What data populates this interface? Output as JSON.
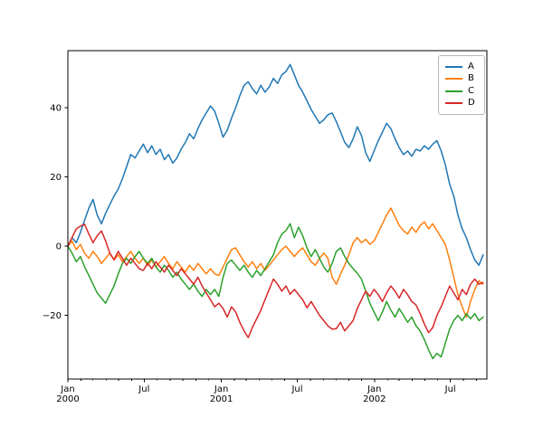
{
  "chart_data": {
    "type": "line",
    "title": "",
    "xlabel": "",
    "ylabel": "",
    "grid": false,
    "legend_position": "upper-right",
    "x_axis": {
      "unit": "days since 2000-01-01",
      "range_days": [
        0,
        999
      ],
      "major_ticks": [
        {
          "day": 0,
          "line1": "Jan",
          "line2": "2000"
        },
        {
          "day": 182,
          "line1": "Jul",
          "line2": ""
        },
        {
          "day": 366,
          "line1": "Jan",
          "line2": "2001"
        },
        {
          "day": 547,
          "line1": "Jul",
          "line2": ""
        },
        {
          "day": 731,
          "line1": "Jan",
          "line2": "2002"
        },
        {
          "day": 912,
          "line1": "Jul",
          "line2": ""
        }
      ],
      "minor_tick_days": [
        31,
        60,
        91,
        121,
        152,
        213,
        244,
        274,
        305,
        335,
        397,
        425,
        456,
        486,
        517,
        578,
        609,
        639,
        670,
        700,
        762,
        790,
        821,
        851,
        882,
        943,
        974
      ]
    },
    "y_axis": {
      "lim": [
        -38.4,
        56.5
      ],
      "ticks": [
        {
          "value": -20,
          "label": "−20"
        },
        {
          "value": 0,
          "label": "0"
        },
        {
          "value": 20,
          "label": "20"
        },
        {
          "value": 40,
          "label": "40"
        }
      ]
    },
    "step_days": 10,
    "series": [
      {
        "name": "A",
        "color": "#1f77b4",
        "values": [
          0,
          2.5,
          1,
          4,
          7.5,
          11,
          13.5,
          9,
          6.5,
          9.5,
          12,
          14.5,
          16.5,
          19.5,
          23,
          26.5,
          25.5,
          27.5,
          29.5,
          27,
          29,
          26.5,
          28,
          25,
          26.5,
          24,
          25.5,
          28,
          30,
          32.5,
          31,
          34,
          36.5,
          38.5,
          40.5,
          39,
          35.5,
          31.5,
          33.5,
          37,
          40,
          43.5,
          46.5,
          47.5,
          45.5,
          44,
          46.5,
          44.5,
          46,
          48.5,
          47,
          49.5,
          50.5,
          52.5,
          49.5,
          46.5,
          44.5,
          42,
          39.5,
          37.5,
          35.5,
          36.5,
          38,
          38.5,
          36,
          33,
          30,
          28.5,
          31,
          34.5,
          32,
          27,
          24.5,
          27.5,
          30.5,
          33,
          35.5,
          34,
          31,
          28.5,
          26.5,
          27.5,
          26,
          28,
          27.5,
          29,
          28,
          29.5,
          30.5,
          27.5,
          23.5,
          18,
          14.5,
          9,
          5,
          2.5,
          -1,
          -4,
          -5.5,
          -2.5
        ]
      },
      {
        "name": "B",
        "color": "#ff7f0e",
        "values": [
          0,
          1.5,
          -1,
          0.5,
          -2,
          -3.5,
          -1.5,
          -3,
          -5,
          -3.5,
          -2,
          -4,
          -2.5,
          -4.5,
          -3,
          -1.5,
          -3.5,
          -5,
          -3.5,
          -5.5,
          -4,
          -6,
          -4.5,
          -3,
          -5,
          -6.5,
          -4.5,
          -6,
          -7.5,
          -5.5,
          -7,
          -5,
          -6.5,
          -8,
          -6.5,
          -8,
          -8.5,
          -6,
          -3.5,
          -1,
          -0.5,
          -2.5,
          -4.5,
          -6,
          -4.5,
          -6.5,
          -5,
          -7,
          -5.5,
          -4,
          -2.5,
          -1,
          0,
          -1.5,
          -3,
          -1.5,
          -0.5,
          -2.5,
          -4.5,
          -5.5,
          -3.5,
          -2,
          -3.5,
          -9,
          -11,
          -8,
          -5.5,
          -2.5,
          1,
          2.5,
          1,
          2,
          0.5,
          1.5,
          4,
          6.5,
          9,
          11,
          8.5,
          6,
          4.5,
          3.5,
          5.5,
          4,
          6,
          7,
          5,
          6.5,
          4.5,
          2.5,
          0.5,
          -4,
          -9,
          -14,
          -17.5,
          -20.5,
          -16,
          -12.5,
          -10,
          -11
        ]
      },
      {
        "name": "C",
        "color": "#2ca02c",
        "values": [
          0,
          -2,
          -4.5,
          -3,
          -6,
          -8.5,
          -11,
          -13.5,
          -15,
          -16.5,
          -14,
          -11.5,
          -8,
          -5,
          -3.5,
          -5,
          -3,
          -1.5,
          -3.5,
          -5,
          -3.5,
          -6,
          -7.5,
          -5.5,
          -7,
          -9,
          -7.5,
          -9.5,
          -11,
          -12.5,
          -11,
          -13,
          -14.5,
          -12.5,
          -14,
          -12.5,
          -14.5,
          -9,
          -5,
          -4,
          -5.5,
          -7,
          -5.5,
          -7.5,
          -9,
          -7,
          -8.5,
          -6.5,
          -4.5,
          -2.5,
          1,
          3.5,
          4.5,
          6.5,
          2.5,
          5.5,
          3,
          -0.5,
          -3,
          -1,
          -3.5,
          -6,
          -7.5,
          -5,
          -1.5,
          -0.5,
          -3,
          -5,
          -6.5,
          -7.8,
          -9.5,
          -13,
          -16.5,
          -19,
          -21.5,
          -19,
          -16,
          -18.5,
          -20.5,
          -18,
          -20,
          -22,
          -20.5,
          -23,
          -24.5,
          -27,
          -30,
          -32.5,
          -31,
          -32,
          -28,
          -24,
          -21.5,
          -20,
          -21.5,
          -19.5,
          -21,
          -19.5,
          -21.5,
          -20.5
        ]
      },
      {
        "name": "D",
        "color": "#d62728",
        "values": [
          0,
          2.5,
          5,
          5.8,
          6.3,
          3.5,
          1,
          3,
          4.4,
          1.5,
          -2,
          -3.9,
          -1.5,
          -3.5,
          -5.5,
          -3.5,
          -5,
          -6.5,
          -7,
          -5,
          -6.5,
          -4.5,
          -6,
          -7.5,
          -5.5,
          -7,
          -8.5,
          -6.5,
          -8,
          -9.5,
          -11,
          -9,
          -11.5,
          -13.5,
          -15.5,
          -17.5,
          -16.5,
          -18,
          -20.5,
          -17.5,
          -19,
          -22,
          -24.5,
          -26.4,
          -23.5,
          -21,
          -18.5,
          -15.5,
          -12.5,
          -9.5,
          -11,
          -13,
          -11.5,
          -13.9,
          -12.5,
          -14,
          -15.5,
          -17.8,
          -16,
          -18,
          -20,
          -21.5,
          -23,
          -24,
          -23.8,
          -22,
          -24.5,
          -23,
          -21.5,
          -18,
          -15.5,
          -13,
          -14.5,
          -12.5,
          -14,
          -16,
          -13.5,
          -11.5,
          -13,
          -15,
          -12.5,
          -14,
          -16,
          -17,
          -19.5,
          -22.5,
          -25,
          -23.5,
          -20,
          -17.5,
          -14.5,
          -11.5,
          -13.5,
          -15.5,
          -12.5,
          -14,
          -11,
          -9.5,
          -11,
          -10.5
        ]
      }
    ]
  }
}
